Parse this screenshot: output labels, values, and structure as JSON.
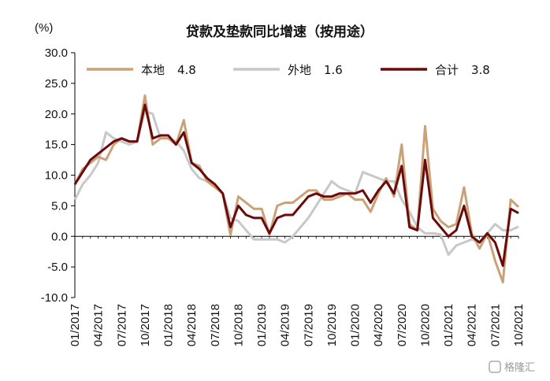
{
  "chart_data": {
    "type": "line",
    "title": "贷款及垫款同比增速（按用途）",
    "ylabel": "(%)",
    "xlabel": "",
    "ylim": [
      -10,
      30
    ],
    "y_ticks": [
      "30.0",
      "25.0",
      "20.0",
      "15.0",
      "10.0",
      "5.0",
      "0.0",
      "-5.0",
      "-10.0"
    ],
    "x_tick_labels": [
      "01/2017",
      "04/2017",
      "07/2017",
      "10/2017",
      "01/2018",
      "04/2018",
      "07/2018",
      "10/2018",
      "01/2019",
      "04/2019",
      "07/2019",
      "10/2019",
      "01/2020",
      "04/2020",
      "07/2020",
      "10/2020",
      "01/2021",
      "04/2021",
      "07/2021",
      "10/2021"
    ],
    "grid": false,
    "legend_position": "top",
    "series": [
      {
        "name": "本地",
        "legend_value": "4.8",
        "color": "#c9a27a",
        "values": [
          8.5,
          11.0,
          12.0,
          13.0,
          12.5,
          15.0,
          16.0,
          15.5,
          15.5,
          23.0,
          15.0,
          16.0,
          16.0,
          15.0,
          19.0,
          12.0,
          11.5,
          9.0,
          8.0,
          7.0,
          0.2,
          6.5,
          5.5,
          4.5,
          4.5,
          0.3,
          5.0,
          5.5,
          5.5,
          6.5,
          7.5,
          7.5,
          6.0,
          6.0,
          6.5,
          7.0,
          6.0,
          6.0,
          4.0,
          7.0,
          9.5,
          6.5,
          15.0,
          2.0,
          1.0,
          18.0,
          4.5,
          2.5,
          1.5,
          2.0,
          8.0,
          0.5,
          -2.0,
          0.5,
          -4.0,
          -7.5,
          6.0,
          4.8
        ]
      },
      {
        "name": "外地",
        "legend_value": "1.6",
        "color": "#c8c8c8",
        "values": [
          6.0,
          8.5,
          10.0,
          12.0,
          17.0,
          16.0,
          15.5,
          15.0,
          15.5,
          20.5,
          20.0,
          16.0,
          16.0,
          15.5,
          14.0,
          11.0,
          9.5,
          9.0,
          8.0,
          7.0,
          3.0,
          2.5,
          1.0,
          -0.5,
          -0.5,
          -0.5,
          -0.5,
          -1.0,
          0.0,
          1.5,
          3.0,
          5.0,
          7.0,
          9.0,
          8.0,
          7.5,
          7.0,
          10.5,
          10.0,
          9.5,
          9.0,
          9.0,
          6.0,
          4.0,
          1.5,
          0.5,
          0.5,
          0.3,
          -3.0,
          -1.5,
          -1.0,
          -0.5,
          -1.0,
          0.5,
          2.0,
          1.0,
          1.0,
          1.6
        ]
      },
      {
        "name": "合计",
        "legend_value": "3.8",
        "color": "#6b0a0a",
        "values": [
          8.5,
          10.5,
          12.5,
          13.5,
          14.5,
          15.5,
          16.0,
          15.5,
          15.5,
          21.5,
          16.0,
          16.5,
          16.5,
          15.0,
          17.0,
          12.0,
          11.0,
          9.5,
          8.5,
          7.0,
          1.5,
          5.0,
          3.5,
          3.0,
          3.0,
          0.5,
          3.0,
          3.5,
          3.5,
          5.0,
          6.5,
          7.0,
          6.5,
          6.5,
          7.0,
          7.0,
          7.0,
          7.5,
          5.5,
          7.5,
          9.0,
          7.0,
          11.5,
          1.5,
          1.0,
          12.5,
          3.0,
          1.5,
          0.0,
          1.0,
          5.0,
          0.0,
          -1.0,
          0.5,
          -1.0,
          -4.8,
          4.5,
          3.8
        ]
      }
    ]
  },
  "watermark": "格隆汇",
  "watermark_icon": "gelonghui-logo-icon"
}
